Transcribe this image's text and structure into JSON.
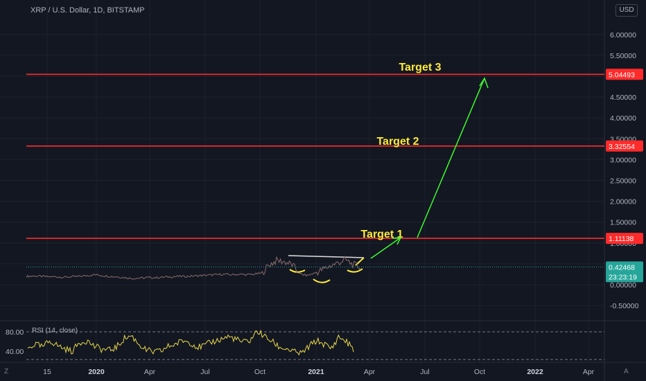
{
  "header": {
    "title": "XRP / U.S. Dollar, 1D, BITSTAMP",
    "currency_button": "USD"
  },
  "footer": {
    "timezone_button": "Z",
    "auto_button": "A"
  },
  "colors": {
    "background": "#131722",
    "grid": "#1e222d",
    "target_line": "#ff2b2b",
    "arrow": "#3cff2e",
    "annotation": "#ffeb3b",
    "price_badge": "#26a69a",
    "rsi": "#e8d84a"
  },
  "rsi_panel": {
    "label": "RSI (14, close)",
    "ticks": [
      "80.00",
      "40.00"
    ]
  },
  "chart_data": {
    "type": "line",
    "title": "XRP / U.S. Dollar, 1D, BITSTAMP",
    "x_ticks": [
      "15",
      "2020",
      "Apr",
      "Jul",
      "Oct",
      "2021",
      "Apr",
      "Jul",
      "Oct",
      "2022",
      "Apr"
    ],
    "y_ticks": [
      "6.00000",
      "5.50000",
      "5.00000",
      "4.50000",
      "4.00000",
      "3.50000",
      "3.00000",
      "2.50000",
      "2.00000",
      "1.50000",
      "1.00000",
      "0.50000",
      "0.00000",
      "-0.50000"
    ],
    "ylim": [
      -0.75,
      6.5
    ],
    "horizontal_levels": [
      {
        "label": "Target 1",
        "value": 1.11138,
        "badge": "1.11138"
      },
      {
        "label": "Target 2",
        "value": 3.32554,
        "badge": "3.32554"
      },
      {
        "label": "Target 3",
        "value": 5.04493,
        "badge": "5.04493"
      }
    ],
    "last_price": {
      "value": 0.42468,
      "badge": "0.42468",
      "countdown": "23:23:19"
    },
    "price_series": [
      0.2,
      0.21,
      0.2,
      0.19,
      0.19,
      0.18,
      0.19,
      0.2,
      0.22,
      0.24,
      0.22,
      0.2,
      0.19,
      0.17,
      0.15,
      0.16,
      0.17,
      0.17,
      0.18,
      0.19,
      0.2,
      0.2,
      0.21,
      0.22,
      0.23,
      0.24,
      0.25,
      0.24,
      0.25,
      0.24,
      0.25,
      0.28,
      0.48,
      0.58,
      0.55,
      0.48,
      0.26,
      0.22,
      0.28,
      0.36,
      0.45,
      0.52,
      0.6,
      0.48,
      0.42
    ],
    "rsi_series": [
      45,
      55,
      48,
      62,
      52,
      45,
      40,
      58,
      62,
      50,
      44,
      42,
      48,
      66,
      72,
      55,
      42,
      38,
      40,
      50,
      55,
      62,
      58,
      48,
      52,
      60,
      64,
      70,
      66,
      58,
      62,
      82,
      70,
      60,
      48,
      45,
      38,
      35,
      50,
      62,
      55,
      45,
      70,
      60,
      45
    ],
    "annotations": [
      "Target 1",
      "Target 2",
      "Target 3"
    ]
  }
}
